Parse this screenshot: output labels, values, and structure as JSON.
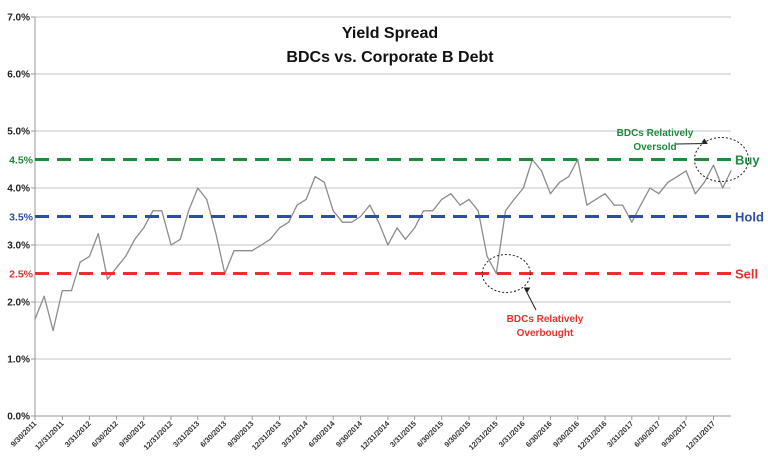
{
  "chart_data": {
    "type": "line",
    "title": [
      "Yield Spread",
      "BDCs vs. Corporate B Debt"
    ],
    "xlabel": "",
    "ylabel": "",
    "ylim": [
      0,
      7
    ],
    "yticks": [
      "0.0%",
      "1.0%",
      "2.0%",
      "3.0%",
      "4.0%",
      "5.0%",
      "6.0%",
      "7.0%"
    ],
    "ytick_values": [
      0,
      1,
      2,
      3,
      4,
      5,
      6,
      7
    ],
    "grid": "horizontal",
    "xlim": [
      "9/30/2011",
      "2/28/2018"
    ],
    "xticks": [
      "9/30/2011",
      "12/31/2011",
      "3/31/2012",
      "6/30/2012",
      "9/30/2012",
      "12/31/2012",
      "3/31/2013",
      "6/30/2013",
      "9/30/2013",
      "12/31/2013",
      "3/31/2014",
      "6/30/2014",
      "9/30/2014",
      "12/31/2014",
      "3/31/2015",
      "6/30/2015",
      "9/30/2015",
      "12/31/2015",
      "3/31/2016",
      "6/30/2016",
      "9/30/2016",
      "12/31/2016",
      "3/31/2017",
      "6/30/2017",
      "9/30/2017",
      "12/31/2017"
    ],
    "series_color": "#8c8c8c",
    "x": [
      "9/30/2011",
      "10/31/2011",
      "11/30/2011",
      "12/31/2011",
      "1/31/2012",
      "2/29/2012",
      "3/31/2012",
      "4/30/2012",
      "5/31/2012",
      "6/30/2012",
      "7/31/2012",
      "8/31/2012",
      "9/30/2012",
      "10/31/2012",
      "11/30/2012",
      "12/31/2012",
      "1/31/2013",
      "2/28/2013",
      "3/31/2013",
      "4/30/2013",
      "5/31/2013",
      "6/30/2013",
      "7/31/2013",
      "8/31/2013",
      "9/30/2013",
      "10/31/2013",
      "11/30/2013",
      "12/31/2013",
      "1/31/2014",
      "2/28/2014",
      "3/31/2014",
      "4/30/2014",
      "5/31/2014",
      "6/30/2014",
      "7/31/2014",
      "8/31/2014",
      "9/30/2014",
      "10/31/2014",
      "11/30/2014",
      "12/31/2014",
      "1/31/2015",
      "2/28/2015",
      "3/31/2015",
      "4/30/2015",
      "5/31/2015",
      "6/30/2015",
      "7/31/2015",
      "8/31/2015",
      "9/30/2015",
      "10/31/2015",
      "11/30/2015",
      "12/31/2015",
      "1/31/2016",
      "2/29/2016",
      "3/31/2016",
      "4/30/2016",
      "5/31/2016",
      "6/30/2016",
      "7/31/2016",
      "8/31/2016",
      "9/30/2016",
      "10/31/2016",
      "11/30/2016",
      "12/31/2016",
      "1/31/2017",
      "2/28/2017",
      "3/31/2017",
      "4/30/2017",
      "5/31/2017",
      "6/30/2017",
      "7/31/2017",
      "8/31/2017",
      "9/30/2017",
      "10/31/2017",
      "11/30/2017",
      "12/31/2017",
      "1/31/2018",
      "2/28/2018"
    ],
    "values": [
      1.7,
      2.1,
      1.5,
      2.2,
      2.2,
      2.7,
      2.8,
      3.2,
      2.4,
      2.6,
      2.8,
      3.1,
      3.3,
      3.6,
      3.6,
      3.0,
      3.1,
      3.6,
      4.0,
      3.8,
      3.2,
      2.5,
      2.9,
      2.9,
      2.9,
      3.0,
      3.1,
      3.3,
      3.4,
      3.7,
      3.8,
      4.2,
      4.1,
      3.6,
      3.4,
      3.4,
      3.5,
      3.7,
      3.4,
      3.0,
      3.3,
      3.1,
      3.3,
      3.6,
      3.6,
      3.8,
      3.9,
      3.7,
      3.8,
      3.6,
      2.8,
      2.5,
      3.6,
      3.8,
      4.0,
      4.5,
      4.3,
      3.9,
      4.1,
      4.2,
      4.5,
      3.7,
      3.8,
      3.9,
      3.7,
      3.7,
      3.4,
      3.7,
      4.0,
      3.9,
      4.1,
      4.2,
      4.3,
      3.9,
      4.1,
      4.4,
      4.0,
      4.3
    ],
    "reference_lines": [
      {
        "value": 4.5,
        "label_left": "4.5%",
        "label_right": "Buy",
        "color": "#1e8a3c"
      },
      {
        "value": 3.5,
        "label_left": "3.5%",
        "label_right": "Hold",
        "color": "#2e4fa0"
      },
      {
        "value": 2.5,
        "label_left": "2.5%",
        "label_right": "Sell",
        "color": "#e8302e"
      }
    ],
    "annotations": [
      {
        "text": [
          "BDCs Relatively",
          "Oversold"
        ],
        "color": "#1e8a3c",
        "target_date": "12/31/2017",
        "target_value": 4.5
      },
      {
        "text": [
          "BDCs Relatively",
          "Overbought"
        ],
        "color": "#e8302e",
        "target_date": "12/31/2015",
        "target_value": 2.5
      }
    ]
  }
}
